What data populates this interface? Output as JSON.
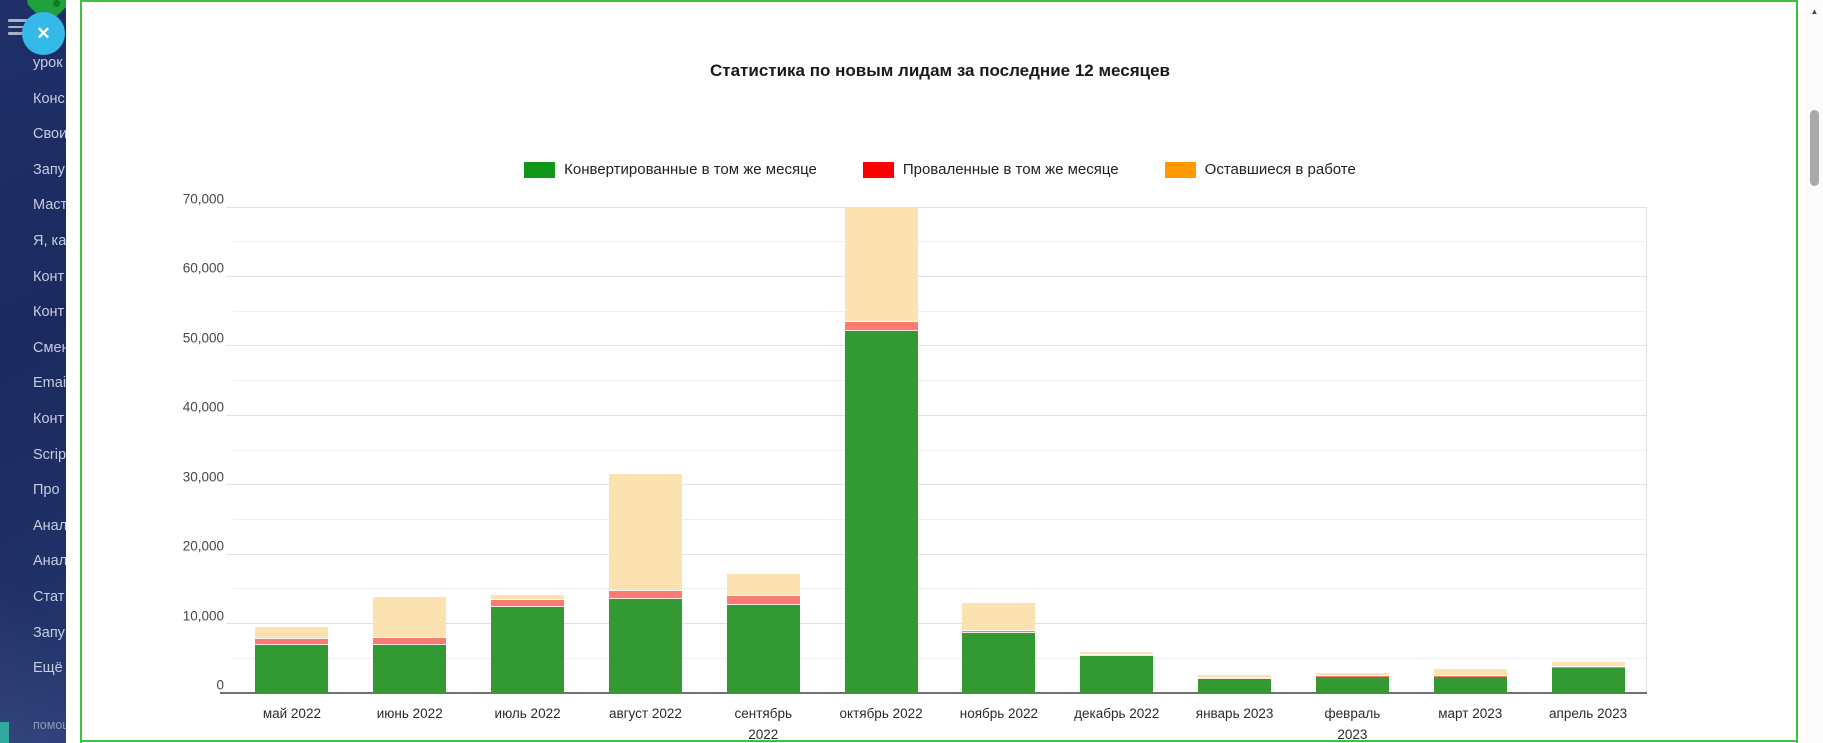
{
  "sidebar": {
    "items": [
      "урок",
      "Конс",
      "Свои",
      "Запу",
      "Маст",
      "Я, ка",
      "Конт",
      "Конт",
      "Смен",
      "Emai",
      "Конт",
      "Scrip",
      "Про",
      "Анал",
      "Анал",
      "Стат",
      "Запу",
      "Ещё"
    ],
    "help_label": "помощь",
    "close_icon": "✕"
  },
  "scrollbar": {
    "up_arrow": "▲"
  },
  "colors": {
    "sidebar_bg": "#1b2a5e",
    "sidebar_text": "#c7cdde",
    "accent_border_green": "#3ec23e",
    "close_button_cyan": "#35b9e9",
    "logo_green": "#1fa23c",
    "bottom_teal": "#2fa89d"
  },
  "chart_data": {
    "type": "bar",
    "stacked": true,
    "title": "Статистика по новым лидам за последние 12 месяцев",
    "legend_position": "top",
    "grid": true,
    "ylim": [
      0,
      70000
    ],
    "ytick_step": 10000,
    "minor_gridline_step": 5000,
    "yticks": [
      {
        "value": 0,
        "label": "0"
      },
      {
        "value": 10000,
        "label": "10,000"
      },
      {
        "value": 20000,
        "label": "20,000"
      },
      {
        "value": 30000,
        "label": "30,000"
      },
      {
        "value": 40000,
        "label": "40,000"
      },
      {
        "value": 50000,
        "label": "50,000"
      },
      {
        "value": 60000,
        "label": "60,000"
      },
      {
        "value": 70000,
        "label": "70,000"
      }
    ],
    "categories": [
      "май 2022",
      "июнь 2022",
      "июль 2022",
      "август 2022",
      "сентябрь 2022",
      "октябрь 2022",
      "ноябрь 2022",
      "декабрь 2022",
      "январь 2023",
      "февраль 2023",
      "март 2023",
      "апрель 2023"
    ],
    "category_label_lines": [
      [
        "май 2022"
      ],
      [
        "июнь 2022"
      ],
      [
        "июль 2022"
      ],
      [
        "август 2022"
      ],
      [
        "сентябрь",
        "2022"
      ],
      [
        "октябрь 2022"
      ],
      [
        "ноябрь 2022"
      ],
      [
        "декабрь 2022"
      ],
      [
        "январь 2023"
      ],
      [
        "февраль",
        "2023"
      ],
      [
        "март 2023"
      ],
      [
        "апрель 2023"
      ]
    ],
    "series": [
      {
        "name": "Конвертированные в том же месяце",
        "legend_color": "#109618",
        "bar_color": "#339a33",
        "values": [
          6950,
          6950,
          12450,
          13600,
          12700,
          52200,
          8700,
          5350,
          2000,
          2450,
          2450,
          3750
        ]
      },
      {
        "name": "Проваленные в том же месяце",
        "legend_color": "#ff0000",
        "bar_color": "#fa7b73",
        "values": [
          850,
          1000,
          1000,
          1150,
          1300,
          1300,
          250,
          100,
          100,
          50,
          50,
          50
        ]
      },
      {
        "name": "Оставшиеся в работе",
        "legend_color": "#ff9900",
        "bar_color": "#fde2b1",
        "values": [
          1750,
          5950,
          700,
          16800,
          3100,
          16500,
          3950,
          500,
          500,
          400,
          1000,
          700
        ]
      }
    ],
    "totals": [
      9550,
      13900,
      14150,
      31550,
      17100,
      70000,
      12900,
      5950,
      2600,
      2900,
      3500,
      4500
    ]
  }
}
